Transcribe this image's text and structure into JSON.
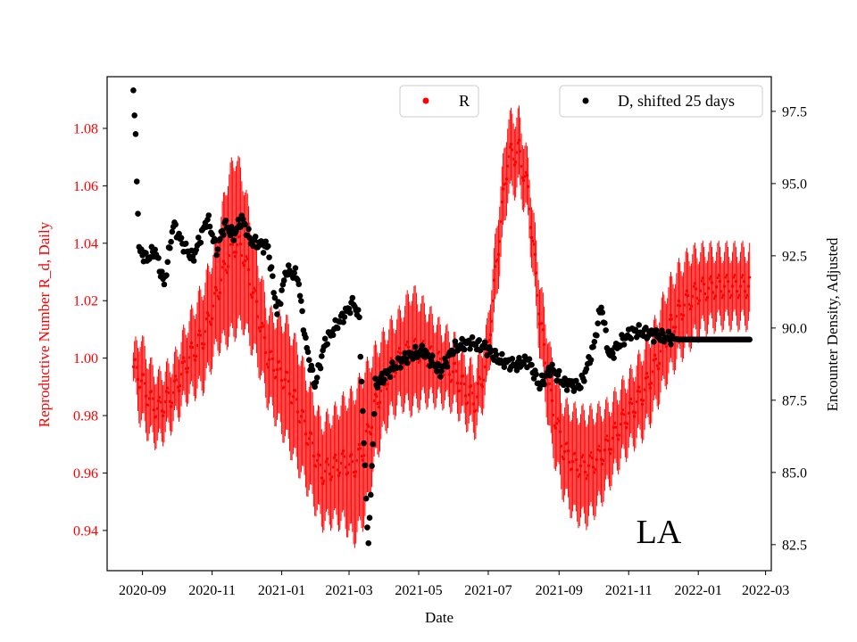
{
  "chart_data": {
    "type": "scatter",
    "xlabel": "Date",
    "ylabel_left": "Reproductive Number R_d, Daily",
    "ylabel_right": "Encounter Density, Adjusted",
    "annotation": "LA",
    "colors": {
      "R": "#ff0000",
      "D": "#000000",
      "axis_left": "#ff0000",
      "axis_right": "#000000"
    },
    "x_range": [
      "2020-08-01",
      "2022-03-06"
    ],
    "x_ticks": [
      "2020-09",
      "2020-11",
      "2021-01",
      "2021-03",
      "2021-05",
      "2021-07",
      "2021-09",
      "2021-11",
      "2022-01",
      "2022-03"
    ],
    "y_left_range": [
      0.926,
      1.098
    ],
    "y_left_ticks": [
      "0.94",
      "0.96",
      "0.98",
      "1.00",
      "1.02",
      "1.04",
      "1.06",
      "1.08"
    ],
    "y_right_range": [
      81.6,
      98.7
    ],
    "y_right_ticks": [
      "82.5",
      "85.0",
      "87.5",
      "90.0",
      "92.5",
      "95.0",
      "97.5"
    ],
    "legend": [
      {
        "label": "R",
        "color": "#ff0000",
        "position": "top-center"
      },
      {
        "label": "D, shifted 25 days",
        "color": "#000000",
        "position": "top-right"
      }
    ],
    "series_R_keypoints": [
      [
        "2020-08-24",
        0.997,
        0.005
      ],
      [
        "2020-08-30",
        0.993,
        0.014
      ],
      [
        "2020-09-08",
        0.985,
        0.012
      ],
      [
        "2020-09-15",
        0.982,
        0.011
      ],
      [
        "2020-09-28",
        0.988,
        0.01
      ],
      [
        "2020-10-10",
        0.999,
        0.012
      ],
      [
        "2020-10-25",
        1.008,
        0.017
      ],
      [
        "2020-11-05",
        1.022,
        0.018
      ],
      [
        "2020-11-15",
        1.035,
        0.028
      ],
      [
        "2020-11-22",
        1.04,
        0.03
      ],
      [
        "2020-11-28",
        1.037,
        0.025
      ],
      [
        "2020-12-10",
        1.018,
        0.018
      ],
      [
        "2020-12-20",
        1.0,
        0.015
      ],
      [
        "2021-01-05",
        0.992,
        0.02
      ],
      [
        "2021-01-15",
        0.983,
        0.02
      ],
      [
        "2021-01-25",
        0.972,
        0.018
      ],
      [
        "2021-02-05",
        0.96,
        0.017
      ],
      [
        "2021-02-15",
        0.962,
        0.018
      ],
      [
        "2021-02-25",
        0.964,
        0.021
      ],
      [
        "2021-03-05",
        0.962,
        0.025
      ],
      [
        "2021-03-15",
        0.97,
        0.025
      ],
      [
        "2021-03-25",
        0.985,
        0.018
      ],
      [
        "2021-04-05",
        0.995,
        0.015
      ],
      [
        "2021-04-15",
        1.0,
        0.015
      ],
      [
        "2021-04-25",
        1.003,
        0.02
      ],
      [
        "2021-05-05",
        1.002,
        0.016
      ],
      [
        "2021-05-20",
        0.998,
        0.012
      ],
      [
        "2021-06-01",
        0.995,
        0.011
      ],
      [
        "2021-06-12",
        0.988,
        0.01
      ],
      [
        "2021-06-20",
        0.985,
        0.01
      ],
      [
        "2021-06-30",
        1.0,
        0.01
      ],
      [
        "2021-07-10",
        1.04,
        0.012
      ],
      [
        "2021-07-18",
        1.07,
        0.013
      ],
      [
        "2021-07-28",
        1.072,
        0.012
      ],
      [
        "2021-08-05",
        1.058,
        0.01
      ],
      [
        "2021-08-15",
        1.015,
        0.012
      ],
      [
        "2021-08-25",
        0.985,
        0.015
      ],
      [
        "2021-09-05",
        0.968,
        0.015
      ],
      [
        "2021-09-15",
        0.963,
        0.018
      ],
      [
        "2021-09-25",
        0.962,
        0.018
      ],
      [
        "2021-10-05",
        0.965,
        0.016
      ],
      [
        "2021-10-15",
        0.97,
        0.013
      ],
      [
        "2021-10-25",
        0.977,
        0.012
      ],
      [
        "2021-11-05",
        0.983,
        0.012
      ],
      [
        "2021-11-15",
        0.989,
        0.014
      ],
      [
        "2021-11-25",
        0.998,
        0.014
      ],
      [
        "2021-12-05",
        1.009,
        0.015
      ],
      [
        "2021-12-15",
        1.016,
        0.015
      ],
      [
        "2021-12-25",
        1.021,
        0.015
      ],
      [
        "2022-01-05",
        1.024,
        0.013
      ],
      [
        "2022-01-20",
        1.025,
        0.012
      ],
      [
        "2022-02-15",
        1.025,
        0.012
      ]
    ],
    "series_D_keypoints": [
      [
        "2020-08-24",
        98.3
      ],
      [
        "2020-08-25",
        97.2
      ],
      [
        "2020-08-26",
        96.6
      ],
      [
        "2020-08-27",
        95.3
      ],
      [
        "2020-08-28",
        94.0
      ],
      [
        "2020-08-29",
        92.7
      ],
      [
        "2020-09-05",
        92.4
      ],
      [
        "2020-09-12",
        92.7
      ],
      [
        "2020-09-20",
        91.5
      ],
      [
        "2020-09-28",
        93.6
      ],
      [
        "2020-10-05",
        93.0
      ],
      [
        "2020-10-15",
        92.4
      ],
      [
        "2020-10-28",
        93.8
      ],
      [
        "2020-11-05",
        92.7
      ],
      [
        "2020-11-12",
        93.6
      ],
      [
        "2020-11-20",
        93.2
      ],
      [
        "2020-11-27",
        93.8
      ],
      [
        "2020-12-05",
        93.0
      ],
      [
        "2020-12-20",
        92.8
      ],
      [
        "2020-12-28",
        90.5
      ],
      [
        "2021-01-05",
        92.0
      ],
      [
        "2021-01-15",
        91.8
      ],
      [
        "2021-01-22",
        89.5
      ],
      [
        "2021-01-30",
        88.0
      ],
      [
        "2021-02-08",
        89.5
      ],
      [
        "2021-02-20",
        90.2
      ],
      [
        "2021-03-05",
        90.9
      ],
      [
        "2021-03-10",
        90.3
      ],
      [
        "2021-03-14",
        86.0
      ],
      [
        "2021-03-18",
        82.4
      ],
      [
        "2021-03-24",
        88.0
      ],
      [
        "2021-04-05",
        88.5
      ],
      [
        "2021-04-20",
        89.0
      ],
      [
        "2021-05-05",
        89.2
      ],
      [
        "2021-05-20",
        88.5
      ],
      [
        "2021-06-01",
        89.3
      ],
      [
        "2021-06-15",
        89.5
      ],
      [
        "2021-06-30",
        89.3
      ],
      [
        "2021-07-10",
        88.9
      ],
      [
        "2021-07-25",
        88.7
      ],
      [
        "2021-08-05",
        88.9
      ],
      [
        "2021-08-15",
        88.0
      ],
      [
        "2021-08-25",
        88.6
      ],
      [
        "2021-09-05",
        88.1
      ],
      [
        "2021-09-20",
        88.0
      ],
      [
        "2021-10-01",
        89.3
      ],
      [
        "2021-10-08",
        90.8
      ],
      [
        "2021-10-15",
        89.0
      ],
      [
        "2021-10-25",
        89.5
      ],
      [
        "2021-11-05",
        89.9
      ],
      [
        "2021-11-20",
        89.8
      ],
      [
        "2021-12-01",
        89.7
      ],
      [
        "2021-12-15",
        89.6
      ],
      [
        "2022-02-15",
        89.6
      ]
    ]
  }
}
